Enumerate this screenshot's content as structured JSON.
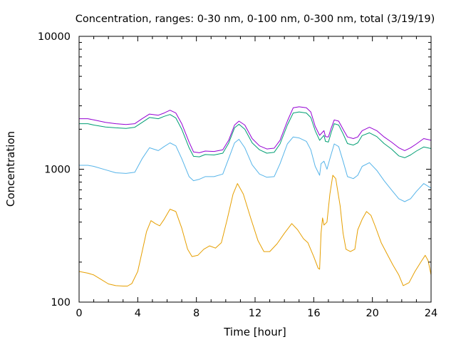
{
  "chart_data": {
    "type": "line",
    "title": "Concentration, ranges: 0-30 nm, 0-100 nm, 0-300 nm, total (3/19/19)",
    "xlabel": "Time [hour]",
    "ylabel": "Concentration",
    "xlim": [
      0,
      24
    ],
    "ylim": [
      100,
      10000
    ],
    "yscale": "log",
    "grid": false,
    "legend": "none",
    "x_ticks": [
      0,
      4,
      8,
      12,
      16,
      20,
      24
    ],
    "x_tick_labels": [
      "0",
      "4",
      "8",
      "12",
      "16",
      "20",
      "24"
    ],
    "y_ticks": [
      100,
      1000,
      10000
    ],
    "y_tick_labels": [
      "100",
      "1000",
      "10000"
    ],
    "series": [
      {
        "color": "#9400d3",
        "points": [
          [
            0,
            2400
          ],
          [
            0.6,
            2400
          ],
          [
            1,
            2350
          ],
          [
            1.8,
            2250
          ],
          [
            2.5,
            2200
          ],
          [
            3.2,
            2170
          ],
          [
            3.8,
            2200
          ],
          [
            4.3,
            2400
          ],
          [
            4.8,
            2600
          ],
          [
            5.4,
            2550
          ],
          [
            5.8,
            2650
          ],
          [
            6.2,
            2780
          ],
          [
            6.6,
            2650
          ],
          [
            7,
            2200
          ],
          [
            7.5,
            1600
          ],
          [
            7.8,
            1350
          ],
          [
            8.2,
            1330
          ],
          [
            8.6,
            1370
          ],
          [
            9.2,
            1360
          ],
          [
            9.8,
            1400
          ],
          [
            10.2,
            1650
          ],
          [
            10.6,
            2150
          ],
          [
            10.9,
            2300
          ],
          [
            11.3,
            2150
          ],
          [
            11.8,
            1700
          ],
          [
            12.3,
            1500
          ],
          [
            12.8,
            1420
          ],
          [
            13.3,
            1440
          ],
          [
            13.7,
            1650
          ],
          [
            14.2,
            2300
          ],
          [
            14.6,
            2900
          ],
          [
            15,
            2950
          ],
          [
            15.5,
            2900
          ],
          [
            15.8,
            2700
          ],
          [
            16.1,
            2100
          ],
          [
            16.4,
            1800
          ],
          [
            16.7,
            1950
          ],
          [
            16.8,
            1760
          ],
          [
            17,
            1750
          ],
          [
            17.2,
            2050
          ],
          [
            17.4,
            2350
          ],
          [
            17.7,
            2300
          ],
          [
            18,
            2000
          ],
          [
            18.3,
            1750
          ],
          [
            18.7,
            1700
          ],
          [
            19,
            1750
          ],
          [
            19.3,
            1950
          ],
          [
            19.8,
            2070
          ],
          [
            20.3,
            1950
          ],
          [
            20.8,
            1750
          ],
          [
            21.3,
            1600
          ],
          [
            21.8,
            1450
          ],
          [
            22.2,
            1380
          ],
          [
            22.6,
            1450
          ],
          [
            23,
            1550
          ],
          [
            23.5,
            1700
          ],
          [
            24,
            1650
          ]
        ]
      },
      {
        "color": "#009e73",
        "points": [
          [
            0,
            2200
          ],
          [
            0.6,
            2200
          ],
          [
            1,
            2150
          ],
          [
            1.8,
            2080
          ],
          [
            2.5,
            2050
          ],
          [
            3.2,
            2030
          ],
          [
            3.8,
            2070
          ],
          [
            4.3,
            2250
          ],
          [
            4.8,
            2450
          ],
          [
            5.4,
            2400
          ],
          [
            5.8,
            2500
          ],
          [
            6.2,
            2580
          ],
          [
            6.6,
            2430
          ],
          [
            7,
            2000
          ],
          [
            7.5,
            1450
          ],
          [
            7.8,
            1250
          ],
          [
            8.2,
            1240
          ],
          [
            8.6,
            1290
          ],
          [
            9.2,
            1280
          ],
          [
            9.8,
            1320
          ],
          [
            10.2,
            1570
          ],
          [
            10.6,
            2050
          ],
          [
            10.9,
            2180
          ],
          [
            11.3,
            2000
          ],
          [
            11.8,
            1580
          ],
          [
            12.3,
            1400
          ],
          [
            12.8,
            1320
          ],
          [
            13.3,
            1340
          ],
          [
            13.7,
            1550
          ],
          [
            14.2,
            2150
          ],
          [
            14.6,
            2650
          ],
          [
            15,
            2700
          ],
          [
            15.5,
            2650
          ],
          [
            15.8,
            2450
          ],
          [
            16.1,
            1950
          ],
          [
            16.4,
            1650
          ],
          [
            16.7,
            1800
          ],
          [
            16.8,
            1620
          ],
          [
            17,
            1600
          ],
          [
            17.2,
            1900
          ],
          [
            17.4,
            2200
          ],
          [
            17.7,
            2150
          ],
          [
            18,
            1850
          ],
          [
            18.3,
            1560
          ],
          [
            18.7,
            1520
          ],
          [
            19,
            1580
          ],
          [
            19.3,
            1790
          ],
          [
            19.8,
            1880
          ],
          [
            20.3,
            1760
          ],
          [
            20.8,
            1560
          ],
          [
            21.3,
            1420
          ],
          [
            21.8,
            1260
          ],
          [
            22.2,
            1220
          ],
          [
            22.6,
            1280
          ],
          [
            23,
            1370
          ],
          [
            23.5,
            1470
          ],
          [
            24,
            1430
          ]
        ]
      },
      {
        "color": "#56b4e9",
        "points": [
          [
            0,
            1070
          ],
          [
            0.6,
            1070
          ],
          [
            1,
            1050
          ],
          [
            1.8,
            990
          ],
          [
            2.5,
            940
          ],
          [
            3.2,
            930
          ],
          [
            3.8,
            950
          ],
          [
            4.3,
            1200
          ],
          [
            4.8,
            1450
          ],
          [
            5.4,
            1380
          ],
          [
            5.8,
            1480
          ],
          [
            6.2,
            1580
          ],
          [
            6.6,
            1500
          ],
          [
            7,
            1200
          ],
          [
            7.5,
            880
          ],
          [
            7.8,
            820
          ],
          [
            8.2,
            840
          ],
          [
            8.6,
            880
          ],
          [
            9.2,
            880
          ],
          [
            9.8,
            920
          ],
          [
            10.2,
            1200
          ],
          [
            10.6,
            1580
          ],
          [
            10.9,
            1680
          ],
          [
            11.3,
            1450
          ],
          [
            11.8,
            1080
          ],
          [
            12.3,
            920
          ],
          [
            12.8,
            870
          ],
          [
            13.3,
            880
          ],
          [
            13.7,
            1100
          ],
          [
            14.2,
            1550
          ],
          [
            14.6,
            1750
          ],
          [
            15,
            1720
          ],
          [
            15.5,
            1620
          ],
          [
            15.8,
            1400
          ],
          [
            16.1,
            1050
          ],
          [
            16.4,
            900
          ],
          [
            16.5,
            1100
          ],
          [
            16.7,
            1150
          ],
          [
            16.9,
            1000
          ],
          [
            17.1,
            1200
          ],
          [
            17.4,
            1550
          ],
          [
            17.7,
            1480
          ],
          [
            18,
            1150
          ],
          [
            18.3,
            880
          ],
          [
            18.7,
            850
          ],
          [
            19,
            900
          ],
          [
            19.3,
            1050
          ],
          [
            19.8,
            1120
          ],
          [
            20.3,
            980
          ],
          [
            20.8,
            820
          ],
          [
            21.3,
            700
          ],
          [
            21.8,
            600
          ],
          [
            22.2,
            570
          ],
          [
            22.6,
            600
          ],
          [
            23,
            680
          ],
          [
            23.5,
            780
          ],
          [
            24,
            720
          ]
        ]
      },
      {
        "color": "#e69f00",
        "points": [
          [
            0,
            170
          ],
          [
            0.6,
            165
          ],
          [
            1,
            160
          ],
          [
            1.5,
            148
          ],
          [
            2,
            137
          ],
          [
            2.5,
            133
          ],
          [
            3,
            132
          ],
          [
            3.3,
            132
          ],
          [
            3.6,
            138
          ],
          [
            4,
            170
          ],
          [
            4.3,
            240
          ],
          [
            4.6,
            340
          ],
          [
            4.9,
            410
          ],
          [
            5.2,
            390
          ],
          [
            5.5,
            375
          ],
          [
            5.8,
            420
          ],
          [
            6.2,
            500
          ],
          [
            6.6,
            480
          ],
          [
            7,
            360
          ],
          [
            7.4,
            250
          ],
          [
            7.7,
            220
          ],
          [
            8.1,
            225
          ],
          [
            8.5,
            250
          ],
          [
            8.9,
            265
          ],
          [
            9.3,
            255
          ],
          [
            9.7,
            280
          ],
          [
            10.1,
            420
          ],
          [
            10.5,
            650
          ],
          [
            10.8,
            780
          ],
          [
            11.2,
            650
          ],
          [
            11.7,
            430
          ],
          [
            12.2,
            290
          ],
          [
            12.6,
            240
          ],
          [
            13,
            240
          ],
          [
            13.5,
            275
          ],
          [
            14,
            330
          ],
          [
            14.5,
            390
          ],
          [
            14.9,
            350
          ],
          [
            15.3,
            300
          ],
          [
            15.6,
            280
          ],
          [
            16,
            220
          ],
          [
            16.3,
            180
          ],
          [
            16.4,
            177
          ],
          [
            16.5,
            330
          ],
          [
            16.6,
            430
          ],
          [
            16.7,
            380
          ],
          [
            16.9,
            400
          ],
          [
            17.1,
            650
          ],
          [
            17.3,
            900
          ],
          [
            17.5,
            850
          ],
          [
            17.8,
            530
          ],
          [
            18,
            330
          ],
          [
            18.2,
            250
          ],
          [
            18.5,
            240
          ],
          [
            18.8,
            250
          ],
          [
            19,
            350
          ],
          [
            19.3,
            420
          ],
          [
            19.6,
            480
          ],
          [
            19.9,
            450
          ],
          [
            20.2,
            370
          ],
          [
            20.6,
            280
          ],
          [
            21,
            230
          ],
          [
            21.4,
            190
          ],
          [
            21.8,
            160
          ],
          [
            22.1,
            133
          ],
          [
            22.5,
            140
          ],
          [
            22.9,
            170
          ],
          [
            23.3,
            200
          ],
          [
            23.6,
            225
          ],
          [
            23.8,
            205
          ],
          [
            24,
            160
          ]
        ]
      }
    ]
  }
}
